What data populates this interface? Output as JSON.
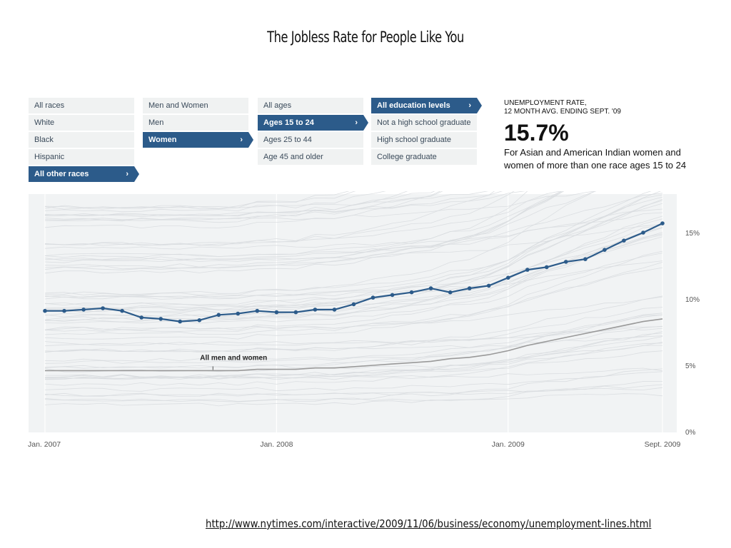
{
  "title": "The Jobless Rate for People Like You",
  "url": "http://www.nytimes.com/interactive/2009/11/06/business/economy/unemployment-lines.html",
  "filters": {
    "race": {
      "items": [
        "All races",
        "White",
        "Black",
        "Hispanic",
        "All other races"
      ],
      "selected": 4
    },
    "sex": {
      "items": [
        "Men and Women",
        "Men",
        "Women"
      ],
      "selected": 2
    },
    "age": {
      "items": [
        "All ages",
        "Ages 15 to 24",
        "Ages 25 to 44",
        "Age 45 and older"
      ],
      "selected": 1
    },
    "education": {
      "items": [
        "All education levels",
        "Not a high school graduate",
        "High school graduate",
        "College graduate"
      ],
      "selected": 0
    }
  },
  "info": {
    "header_line1": "UNEMPLOYMENT RATE,",
    "header_line2": "12 MONTH AVG. ENDING SEPT. '09",
    "value": "15.7%",
    "description": "For Asian and American Indian women and women of more than one race ages 15 to 24"
  },
  "colors": {
    "highlight": "#2c5b8a",
    "baseline": "#999999",
    "background_lines": "#d8dcdf",
    "plot_bg": "#f1f3f4"
  },
  "chart_data": {
    "type": "line",
    "x_tick_labels": [
      "Jan. 2007",
      "Jan. 2008",
      "Jan. 2009",
      "Sept. 2009"
    ],
    "y_tick_labels": [
      "0%",
      "5%",
      "10%",
      "15%"
    ],
    "ylim": [
      0,
      18
    ],
    "grid": "vertical at Jan. 2007, Jan. 2008, Jan. 2009, Sept. 2009",
    "annotation": "All men and women",
    "series": [
      {
        "highlighted": true,
        "values": [
          9.1,
          9.1,
          9.2,
          9.3,
          9.1,
          8.6,
          8.5,
          8.3,
          8.4,
          8.8,
          8.9,
          9.1,
          9.0,
          9.0,
          9.2,
          9.2,
          9.6,
          10.1,
          10.3,
          10.5,
          10.8,
          10.5,
          10.8,
          11.0,
          11.6,
          12.2,
          12.4,
          12.8,
          13.0,
          13.7,
          14.4,
          15.0,
          15.7
        ]
      },
      {
        "name": "All men and women",
        "values": [
          4.6,
          4.6,
          4.6,
          4.6,
          4.6,
          4.6,
          4.6,
          4.6,
          4.6,
          4.6,
          4.6,
          4.7,
          4.7,
          4.7,
          4.8,
          4.8,
          4.9,
          5.0,
          5.1,
          5.2,
          5.3,
          5.5,
          5.6,
          5.8,
          6.1,
          6.5,
          6.8,
          7.1,
          7.4,
          7.7,
          8.0,
          8.3,
          8.5
        ]
      }
    ]
  }
}
